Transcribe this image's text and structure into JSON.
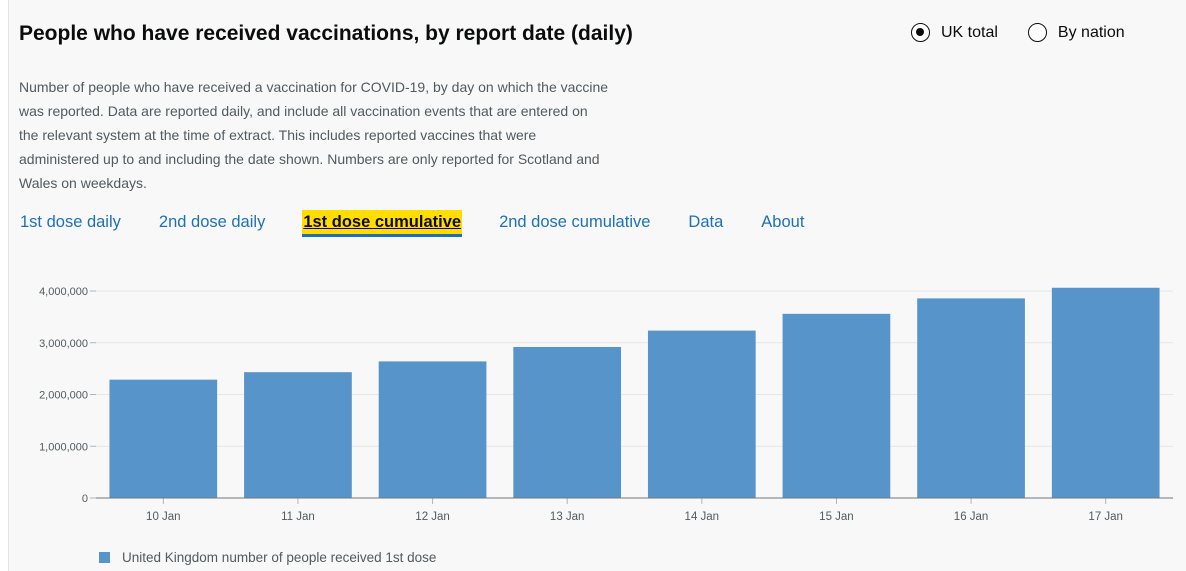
{
  "title": "People who have received vaccinations, by report date (daily)",
  "radios": [
    {
      "label": "UK total",
      "checked": true
    },
    {
      "label": "By nation",
      "checked": false
    }
  ],
  "description": "Number of people who have received a vaccination for COVID-19, by day on which the vaccine was reported. Data are reported daily, and include all vaccination events that are entered on the relevant system at the time of extract. This includes reported vaccines that were administered up to and including the date shown. Numbers are only reported for Scotland and Wales on weekdays.",
  "tabs": [
    {
      "label": "1st dose daily",
      "active": false
    },
    {
      "label": "2nd dose daily",
      "active": false
    },
    {
      "label": "1st dose cumulative",
      "active": true
    },
    {
      "label": "2nd dose cumulative",
      "active": false
    },
    {
      "label": "Data",
      "active": false
    },
    {
      "label": "About",
      "active": false
    }
  ],
  "chart_data": {
    "type": "bar",
    "categories": [
      "10 Jan",
      "11 Jan",
      "12 Jan",
      "13 Jan",
      "14 Jan",
      "15 Jan",
      "16 Jan",
      "17 Jan"
    ],
    "series": [
      {
        "name": "United Kingdom number of people received 1st dose",
        "values": [
          2286572,
          2431648,
          2639309,
          2918252,
          3234946,
          3559179,
          3857266,
          4062501
        ],
        "color": "#5694ca"
      }
    ],
    "y_ticks": [
      "0",
      "1,000,000",
      "2,000,000",
      "3,000,000",
      "4,000,000"
    ],
    "ylim": [
      0,
      4000000
    ],
    "grid": true,
    "legend_position": "bottom-left"
  }
}
